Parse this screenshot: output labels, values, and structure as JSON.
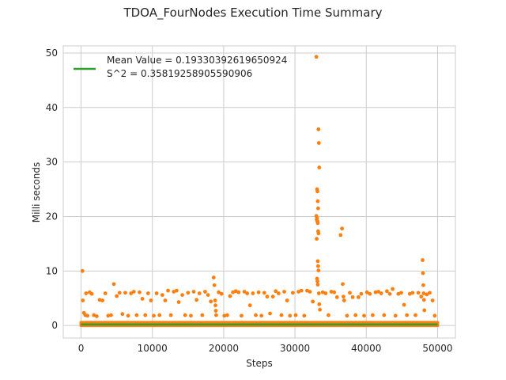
{
  "chart_data": {
    "type": "scatter",
    "title": "TDOA_FourNodes Execution Time Summary",
    "xlabel": "Steps",
    "ylabel": "Milli seconds",
    "xlim": [
      -2500,
      52500
    ],
    "ylim": [
      -2.3,
      51.3
    ],
    "xticks": [
      0,
      10000,
      20000,
      30000,
      40000,
      50000
    ],
    "yticks": [
      0,
      10,
      20,
      30,
      40,
      50
    ],
    "grid": true,
    "legend_position": "top-left",
    "colors": {
      "points": "#ff7f0e",
      "mean_line": "#2ca02c",
      "grid": "#cccccc",
      "spine": "#cccccc",
      "text": "#262626"
    },
    "legend": {
      "line1": "Mean Value = 0.19330392619650924",
      "line2": "S^2 = 0.35819258905590906"
    },
    "mean_line": {
      "y": 0.19330392619650924,
      "x_start": 0,
      "x_end": 50000
    },
    "baseline_band": {
      "x_start": 0,
      "x_end": 50000,
      "y_min": 0.0,
      "y_max": 0.55
    },
    "series": [
      {
        "values_outliers": [
          [
            200,
            10.0
          ],
          [
            250,
            4.6
          ],
          [
            400,
            2.3
          ],
          [
            600,
            1.9
          ],
          [
            700,
            5.9
          ],
          [
            900,
            1.8
          ],
          [
            1200,
            6.1
          ],
          [
            1500,
            5.8
          ],
          [
            1800,
            1.9
          ],
          [
            2200,
            1.7
          ],
          [
            2600,
            4.7
          ],
          [
            3000,
            4.6
          ],
          [
            3400,
            5.9
          ],
          [
            3800,
            1.8
          ],
          [
            4200,
            1.9
          ],
          [
            4600,
            7.6
          ],
          [
            5000,
            5.4
          ],
          [
            5400,
            6.0
          ],
          [
            5800,
            2.1
          ],
          [
            6200,
            6.0
          ],
          [
            6600,
            1.8
          ],
          [
            7000,
            5.9
          ],
          [
            7400,
            6.2
          ],
          [
            7800,
            1.9
          ],
          [
            8200,
            6.1
          ],
          [
            8600,
            4.9
          ],
          [
            9000,
            1.9
          ],
          [
            9400,
            5.9
          ],
          [
            9800,
            4.6
          ],
          [
            10200,
            1.8
          ],
          [
            10600,
            5.9
          ],
          [
            11000,
            1.9
          ],
          [
            11400,
            5.6
          ],
          [
            11800,
            4.6
          ],
          [
            12200,
            6.4
          ],
          [
            12600,
            1.9
          ],
          [
            13000,
            6.2
          ],
          [
            13400,
            6.4
          ],
          [
            13700,
            4.3
          ],
          [
            14200,
            5.6
          ],
          [
            14600,
            1.9
          ],
          [
            15000,
            6.0
          ],
          [
            15400,
            1.8
          ],
          [
            15800,
            6.2
          ],
          [
            16200,
            4.7
          ],
          [
            16600,
            5.9
          ],
          [
            17000,
            1.9
          ],
          [
            17400,
            6.2
          ],
          [
            17800,
            5.6
          ],
          [
            18200,
            4.4
          ],
          [
            18600,
            8.8
          ],
          [
            18700,
            7.4
          ],
          [
            18800,
            4.6
          ],
          [
            18850,
            3.7
          ],
          [
            18900,
            2.7
          ],
          [
            18950,
            1.9
          ],
          [
            19300,
            6.1
          ],
          [
            19700,
            5.8
          ],
          [
            20100,
            1.8
          ],
          [
            20500,
            1.9
          ],
          [
            20900,
            5.4
          ],
          [
            21300,
            6.1
          ],
          [
            21700,
            6.3
          ],
          [
            22100,
            6.1
          ],
          [
            22500,
            1.8
          ],
          [
            22900,
            6.2
          ],
          [
            23300,
            5.9
          ],
          [
            23700,
            3.7
          ],
          [
            24100,
            5.9
          ],
          [
            24500,
            1.9
          ],
          [
            24900,
            6.1
          ],
          [
            25300,
            1.8
          ],
          [
            25700,
            6.0
          ],
          [
            26100,
            5.3
          ],
          [
            26500,
            2.2
          ],
          [
            26900,
            5.3
          ],
          [
            27300,
            6.3
          ],
          [
            27700,
            5.9
          ],
          [
            28100,
            1.9
          ],
          [
            28500,
            6.2
          ],
          [
            28900,
            4.6
          ],
          [
            29300,
            1.8
          ],
          [
            29700,
            6.0
          ],
          [
            30100,
            1.9
          ],
          [
            30500,
            6.2
          ],
          [
            30900,
            6.4
          ],
          [
            31300,
            1.8
          ],
          [
            31700,
            6.4
          ],
          [
            32100,
            6.2
          ],
          [
            32500,
            4.4
          ],
          [
            33000,
            49.3
          ],
          [
            33100,
            25.0
          ],
          [
            33150,
            24.6
          ],
          [
            33200,
            22.8
          ],
          [
            33250,
            21.5
          ],
          [
            33300,
            36.0
          ],
          [
            33350,
            33.5
          ],
          [
            33400,
            29.0
          ],
          [
            33000,
            20.1
          ],
          [
            33050,
            19.4
          ],
          [
            33100,
            19.7
          ],
          [
            33150,
            19.1
          ],
          [
            33200,
            18.8
          ],
          [
            33250,
            17.3
          ],
          [
            33300,
            16.9
          ],
          [
            33050,
            15.9
          ],
          [
            33200,
            11.8
          ],
          [
            33250,
            10.9
          ],
          [
            33300,
            10.1
          ],
          [
            33100,
            8.6
          ],
          [
            33150,
            8.1
          ],
          [
            33200,
            7.5
          ],
          [
            33350,
            5.9
          ],
          [
            33400,
            3.9
          ],
          [
            33500,
            2.9
          ],
          [
            33900,
            6.1
          ],
          [
            34300,
            5.9
          ],
          [
            34700,
            1.9
          ],
          [
            35100,
            6.2
          ],
          [
            35500,
            6.1
          ],
          [
            35900,
            5.2
          ],
          [
            36400,
            16.6
          ],
          [
            36600,
            17.8
          ],
          [
            36700,
            7.6
          ],
          [
            36800,
            5.3
          ],
          [
            36900,
            4.6
          ],
          [
            37300,
            1.8
          ],
          [
            37700,
            6.0
          ],
          [
            38100,
            5.2
          ],
          [
            38500,
            1.9
          ],
          [
            38900,
            5.2
          ],
          [
            39300,
            5.8
          ],
          [
            39700,
            1.8
          ],
          [
            40100,
            6.1
          ],
          [
            40500,
            5.8
          ],
          [
            40900,
            1.9
          ],
          [
            41300,
            6.1
          ],
          [
            41700,
            6.2
          ],
          [
            42100,
            5.9
          ],
          [
            42500,
            1.9
          ],
          [
            42900,
            6.3
          ],
          [
            43300,
            5.8
          ],
          [
            43700,
            6.7
          ],
          [
            44100,
            1.8
          ],
          [
            44500,
            5.8
          ],
          [
            44900,
            6.0
          ],
          [
            45300,
            3.8
          ],
          [
            45700,
            1.9
          ],
          [
            46100,
            5.8
          ],
          [
            46500,
            6.0
          ],
          [
            46900,
            1.9
          ],
          [
            47300,
            6.0
          ],
          [
            47700,
            5.3
          ],
          [
            47900,
            12.0
          ],
          [
            47950,
            9.6
          ],
          [
            48000,
            7.4
          ],
          [
            48050,
            5.9
          ],
          [
            48100,
            4.7
          ],
          [
            48150,
            2.8
          ],
          [
            48500,
            5.7
          ],
          [
            48900,
            6.0
          ],
          [
            49300,
            4.6
          ],
          [
            49600,
            1.8
          ]
        ]
      }
    ]
  }
}
